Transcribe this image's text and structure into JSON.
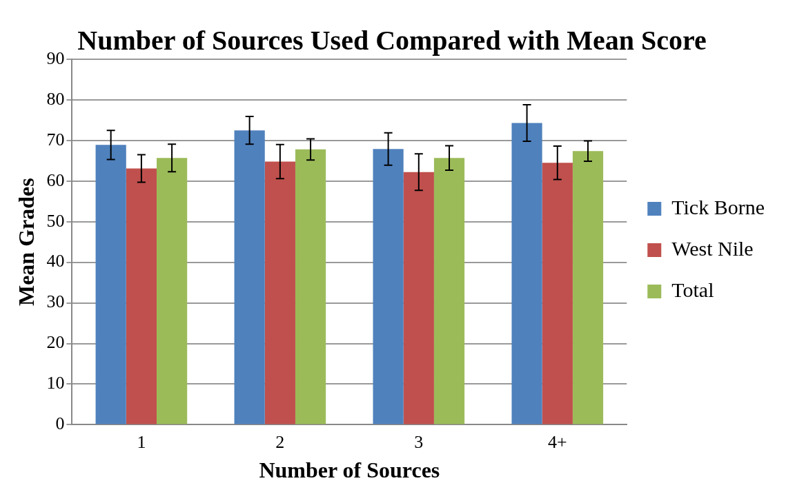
{
  "chart_data": {
    "type": "bar",
    "title": "Number of Sources Used Compared with Mean Score",
    "xlabel": "Number of Sources",
    "ylabel": "Mean Grades",
    "categories": [
      "1",
      "2",
      "3",
      "4+"
    ],
    "series": [
      {
        "name": "Tick Borne",
        "color": "#4f81bd",
        "values": [
          68.9,
          72.5,
          67.9,
          74.3
        ],
        "errors": [
          3.6,
          3.4,
          4,
          4.5
        ]
      },
      {
        "name": "West Nile",
        "color": "#c0504d",
        "values": [
          63.1,
          64.8,
          62.2,
          64.5
        ],
        "errors": [
          3.4,
          4.2,
          4.5,
          4.1
        ]
      },
      {
        "name": "Total",
        "color": "#9bbb59",
        "values": [
          65.7,
          67.8,
          65.7,
          67.4
        ],
        "errors": [
          3.4,
          2.6,
          3,
          2.5
        ]
      }
    ],
    "ylim": [
      0,
      90
    ],
    "yticks": [
      0,
      10,
      20,
      30,
      40,
      50,
      60,
      70,
      80,
      90
    ],
    "grid": "y",
    "legend": "right"
  }
}
